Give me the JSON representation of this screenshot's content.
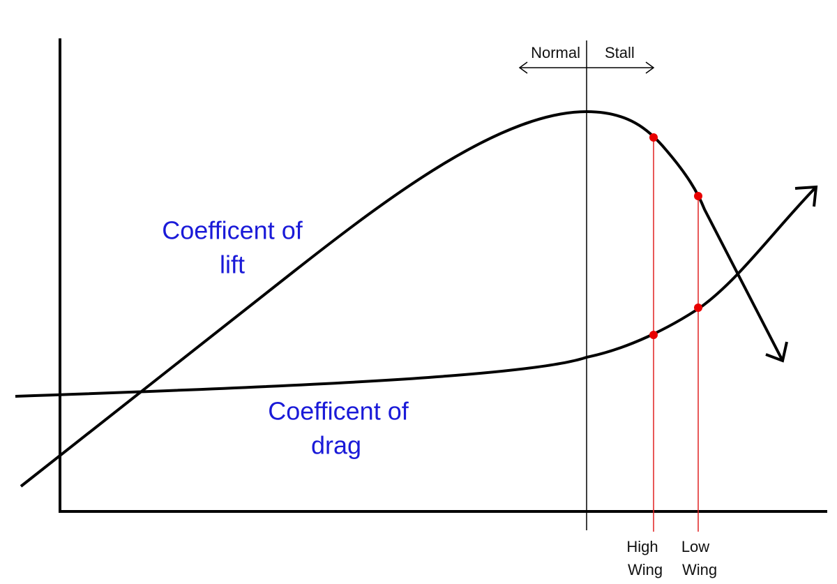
{
  "labels": {
    "normal": "Normal",
    "stall": "Stall",
    "lift": [
      "Coefficent of",
      "lift"
    ],
    "drag": [
      "Coefficent of",
      "drag"
    ],
    "high_wing": [
      "High",
      "Wing"
    ],
    "low_wing": [
      "Low",
      "Wing"
    ]
  }
}
